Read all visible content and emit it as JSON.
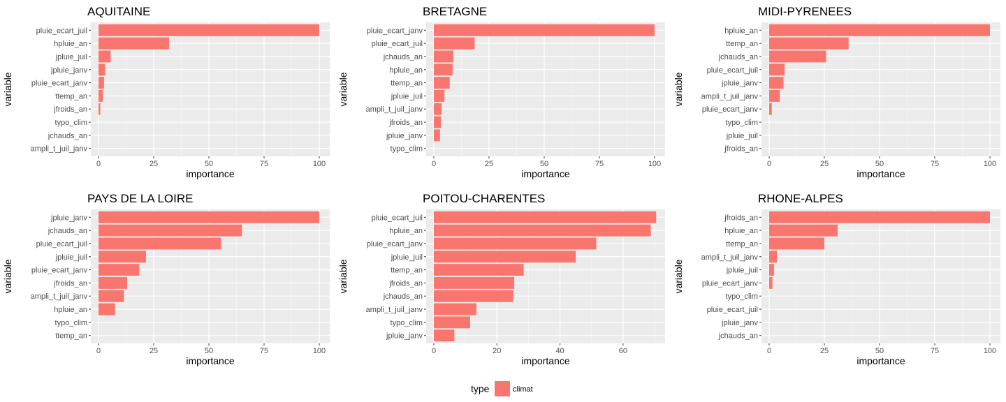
{
  "chart_data": [
    {
      "type": "bar",
      "orientation": "horizontal",
      "title": "AQUITAINE",
      "xlabel": "importance",
      "ylabel": "variable",
      "xlim": [
        0,
        100
      ],
      "xticks": [
        0,
        25,
        50,
        75,
        100
      ],
      "categories": [
        "pluie_ecart_juil",
        "hpluie_an",
        "jpluie_juil",
        "jpluie_janv",
        "pluie_ecart_janv",
        "ttemp_an",
        "jfroids_an",
        "typo_clim",
        "jchauds_an",
        "ampli_t_juil_janv"
      ],
      "values": [
        100,
        32,
        5.5,
        3,
        2.5,
        2,
        0.8,
        0,
        0,
        0
      ],
      "grid": true
    },
    {
      "type": "bar",
      "orientation": "horizontal",
      "title": "BRETAGNE",
      "xlabel": "importance",
      "ylabel": "variable",
      "xlim": [
        0,
        100
      ],
      "xticks": [
        0,
        25,
        50,
        75,
        100
      ],
      "categories": [
        "pluie_ecart_janv",
        "pluie_ecart_juil",
        "jchauds_an",
        "hpluie_an",
        "ttemp_an",
        "jpluie_juil",
        "ampli_t_juil_janv",
        "jfroids_an",
        "jpluie_janv",
        "typo_clim"
      ],
      "values": [
        100,
        18.5,
        8.8,
        8.5,
        7.2,
        4.8,
        3.5,
        3.2,
        2.8,
        0
      ],
      "grid": true
    },
    {
      "type": "bar",
      "orientation": "horizontal",
      "title": "MIDI-PYRENEES",
      "xlabel": "importance",
      "ylabel": "variable",
      "xlim": [
        0,
        100
      ],
      "xticks": [
        0,
        25,
        50,
        75,
        100
      ],
      "categories": [
        "hpluie_an",
        "ttemp_an",
        "jchauds_an",
        "pluie_ecart_juil",
        "jpluie_janv",
        "ampli_t_juil_janv",
        "pluie_ecart_janv",
        "typo_clim",
        "jpluie_juil",
        "jfroids_an"
      ],
      "values": [
        100,
        36,
        25.8,
        7,
        6.5,
        4.8,
        1.2,
        0,
        0,
        0
      ],
      "grid": true
    },
    {
      "type": "bar",
      "orientation": "horizontal",
      "title": "PAYS DE LA LOIRE",
      "xlabel": "importance",
      "ylabel": "variable",
      "xlim": [
        0,
        100
      ],
      "xticks": [
        0,
        25,
        50,
        75,
        100
      ],
      "categories": [
        "jpluie_janv",
        "jchauds_an",
        "pluie_ecart_juil",
        "jpluie_juil",
        "pluie_ecart_janv",
        "jfroids_an",
        "ampli_t_juil_janv",
        "hpluie_an",
        "typo_clim",
        "ttemp_an"
      ],
      "values": [
        100,
        65,
        55.5,
        21.5,
        18.5,
        13,
        11.5,
        7.5,
        0,
        0
      ],
      "grid": true
    },
    {
      "type": "bar",
      "orientation": "horizontal",
      "title": "POITOU-CHARENTES",
      "xlabel": "importance",
      "ylabel": "variable",
      "xlim": [
        0,
        70
      ],
      "xticks": [
        0,
        20,
        40,
        60
      ],
      "categories": [
        "pluie_ecart_juil",
        "hpluie_an",
        "pluie_ecart_janv",
        "jpluie_juil",
        "ttemp_an",
        "jfroids_an",
        "jchauds_an",
        "ampli_t_juil_janv",
        "typo_clim",
        "jpluie_janv"
      ],
      "values": [
        70.5,
        68.8,
        51.5,
        45,
        28.5,
        25.5,
        25.2,
        13.5,
        11.5,
        6.5
      ],
      "grid": true
    },
    {
      "type": "bar",
      "orientation": "horizontal",
      "title": "RHONE-ALPES",
      "xlabel": "importance",
      "ylabel": "variable",
      "xlim": [
        0,
        100
      ],
      "xticks": [
        0,
        25,
        50,
        75,
        100
      ],
      "categories": [
        "jfroids_an",
        "hpluie_an",
        "ttemp_an",
        "ampli_t_juil_janv",
        "jpluie_juil",
        "pluie_ecart_janv",
        "typo_clim",
        "pluie_ecart_juil",
        "jpluie_janv",
        "jchauds_an"
      ],
      "values": [
        100,
        31,
        25,
        3.5,
        2.2,
        1.5,
        0,
        0,
        0,
        0
      ],
      "grid": true
    }
  ],
  "legend": {
    "title": "type",
    "position": "bottom",
    "items": [
      {
        "label": "climat",
        "color": "#F8766D"
      }
    ]
  },
  "colors": {
    "bar": "#F8766D",
    "panel_background": "#EBEBEB",
    "grid_major": "#FFFFFF",
    "tick_text": "#4D4D4D"
  }
}
